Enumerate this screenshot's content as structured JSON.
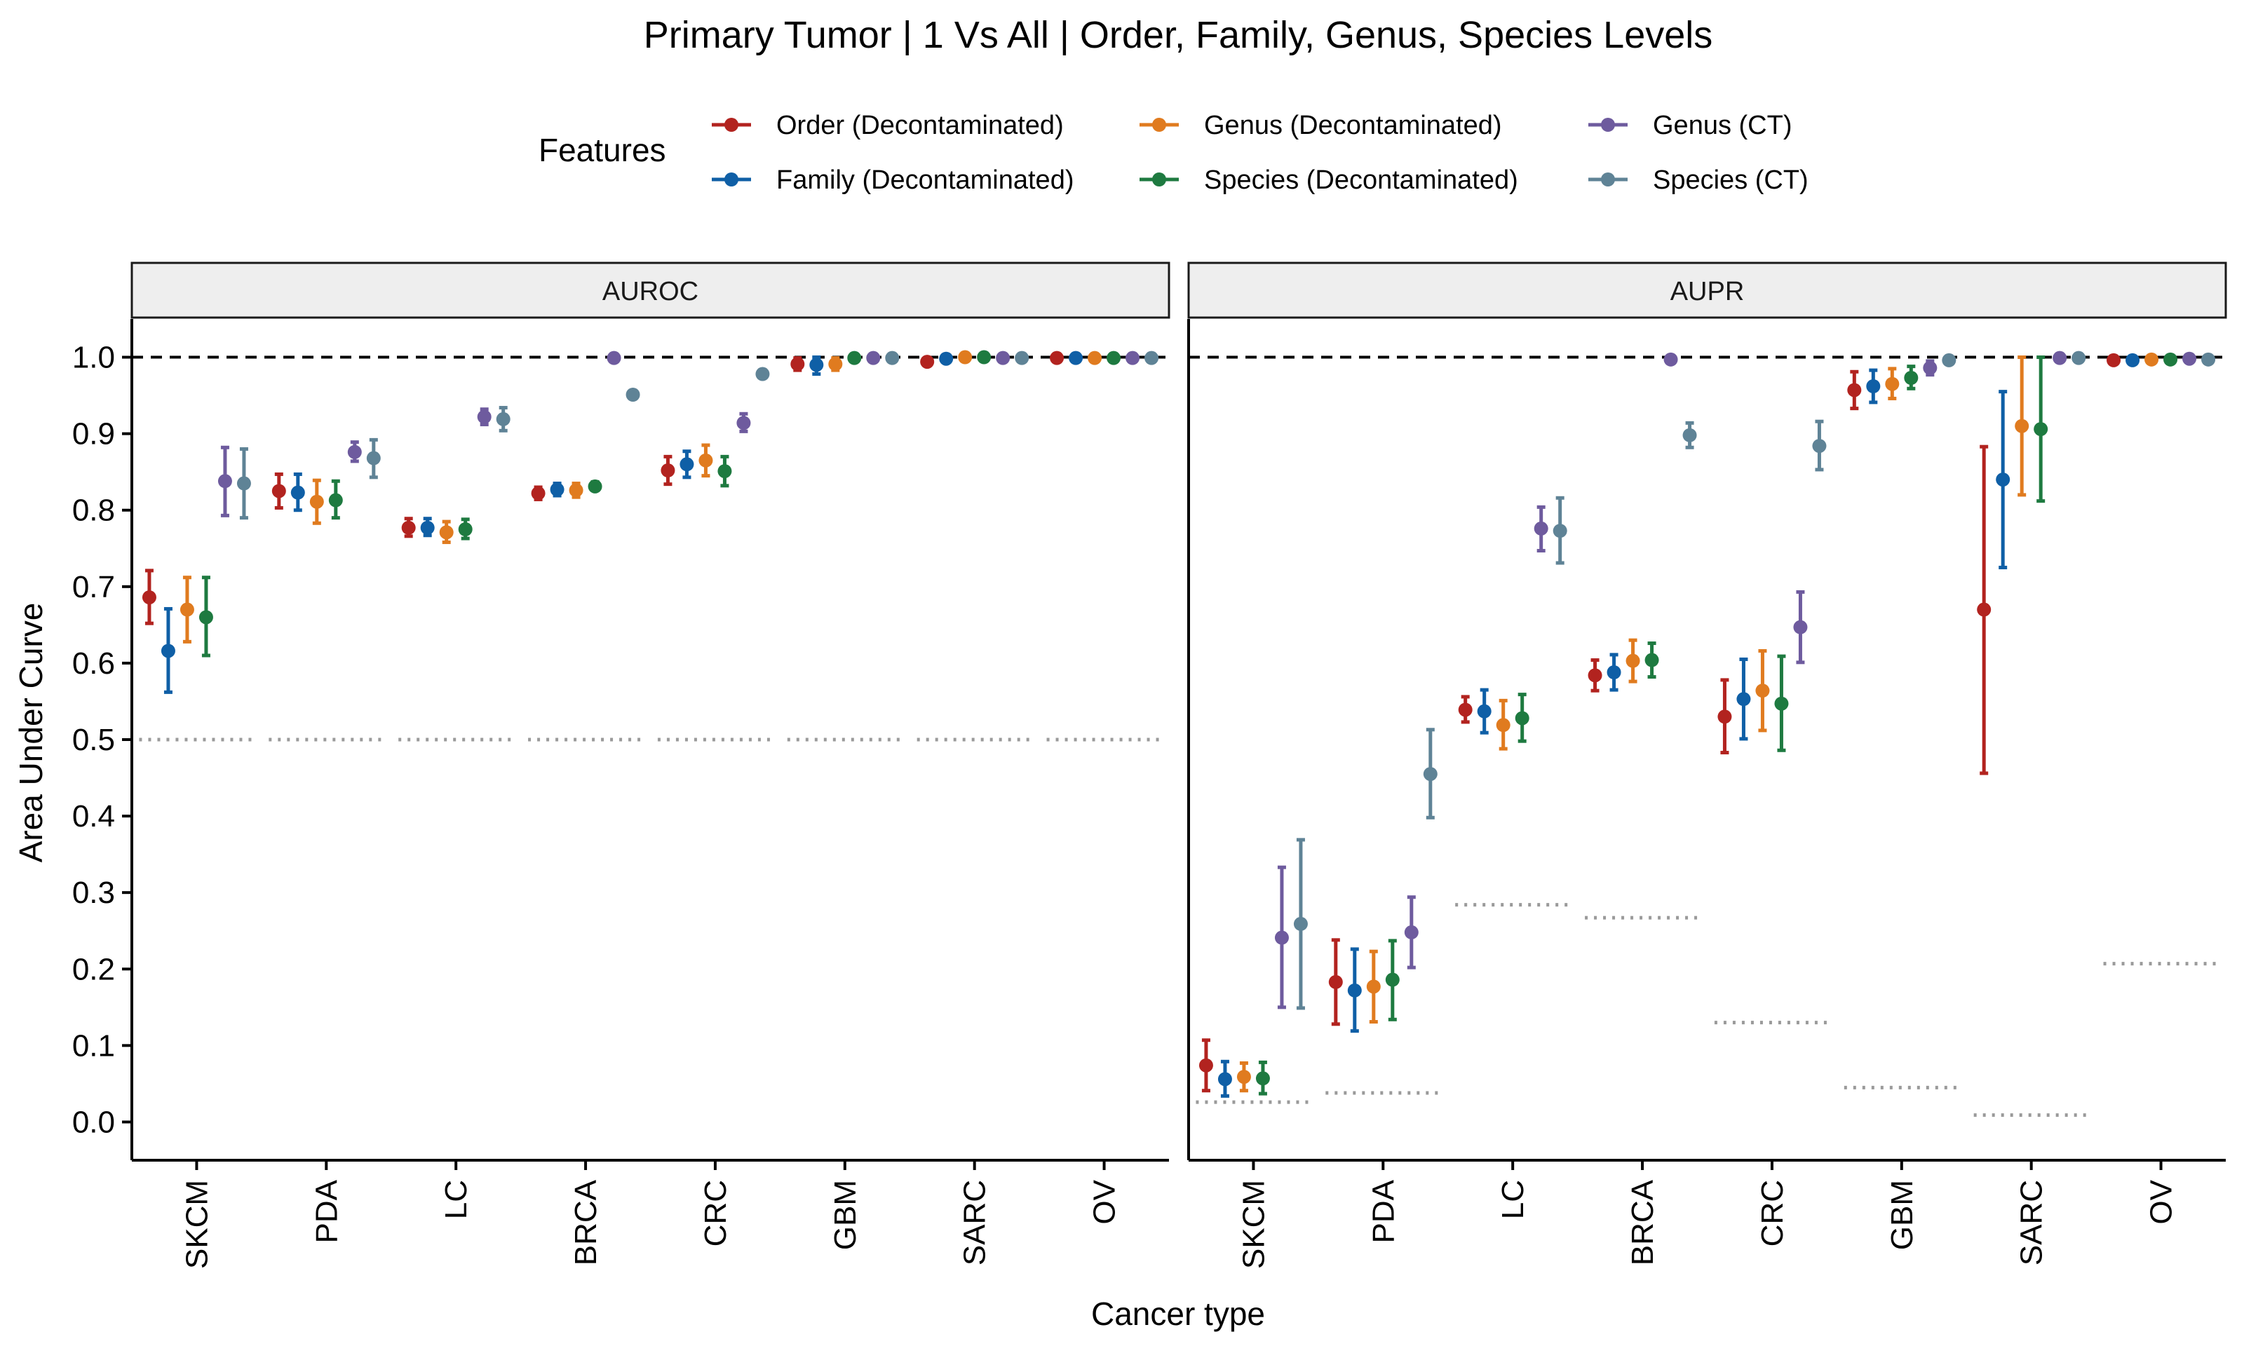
{
  "chart_data": {
    "type": "scatter",
    "title": "Primary Tumor | 1 Vs All | Order, Family, Genus, Species Levels",
    "xlabel": "Cancer type",
    "ylabel": "Area Under Curve",
    "ylim": [
      -0.05,
      1.05
    ],
    "yticks": [
      "0.0",
      "0.1",
      "0.2",
      "0.3",
      "0.4",
      "0.5",
      "0.6",
      "0.7",
      "0.8",
      "0.9",
      "1.0"
    ],
    "categories": [
      "SKCM",
      "PDA",
      "LC",
      "BRCA",
      "CRC",
      "GBM",
      "SARC",
      "OV"
    ],
    "legend": {
      "title": "Features",
      "placement": "top",
      "items": [
        {
          "name": "Order (Decontaminated)",
          "color": "#B2231F"
        },
        {
          "name": "Family (Decontaminated)",
          "color": "#0F5FA6"
        },
        {
          "name": "Genus (Decontaminated)",
          "color": "#E07B1F"
        },
        {
          "name": "Species (Decontaminated)",
          "color": "#1E7A40"
        },
        {
          "name": "Genus (CT)",
          "color": "#6E5B9E"
        },
        {
          "name": "Species (CT)",
          "color": "#5F8396"
        }
      ]
    },
    "reference_line": 1.0,
    "panels": [
      {
        "label": "AUROC",
        "baseline": [
          0.5,
          0.5,
          0.5,
          0.5,
          0.5,
          0.5,
          0.5,
          0.5
        ],
        "series": [
          {
            "name": "Order (Decontaminated)",
            "values": [
              0.686,
              0.825,
              0.777,
              0.822,
              0.852,
              0.991,
              0.994,
              0.999
            ],
            "lower": [
              0.652,
              0.803,
              0.766,
              0.814,
              0.834,
              0.983,
              0.989,
              0.998
            ],
            "upper": [
              0.721,
              0.847,
              0.789,
              0.83,
              0.87,
              0.999,
              0.999,
              1.0
            ]
          },
          {
            "name": "Family (Decontaminated)",
            "values": [
              0.616,
              0.823,
              0.777,
              0.827,
              0.86,
              0.99,
              0.998,
              0.999
            ],
            "lower": [
              0.562,
              0.8,
              0.767,
              0.819,
              0.843,
              0.978,
              0.996,
              0.998
            ],
            "upper": [
              0.671,
              0.847,
              0.789,
              0.835,
              0.877,
              1.0,
              1.0,
              1.0
            ]
          },
          {
            "name": "Genus (Decontaminated)",
            "values": [
              0.67,
              0.811,
              0.771,
              0.826,
              0.865,
              0.991,
              1.0,
              0.999
            ],
            "lower": [
              0.628,
              0.783,
              0.758,
              0.817,
              0.845,
              0.983,
              0.999,
              0.998
            ],
            "upper": [
              0.712,
              0.839,
              0.785,
              0.835,
              0.885,
              0.999,
              1.0,
              1.0
            ]
          },
          {
            "name": "Species (Decontaminated)",
            "values": [
              0.66,
              0.813,
              0.775,
              0.831,
              0.851,
              0.999,
              1.0,
              0.999
            ],
            "lower": [
              0.61,
              0.79,
              0.763,
              0.826,
              0.832,
              0.998,
              0.999,
              0.998
            ],
            "upper": [
              0.712,
              0.838,
              0.788,
              0.837,
              0.87,
              1.0,
              1.0,
              1.0
            ]
          },
          {
            "name": "Genus (CT)",
            "values": [
              0.838,
              0.876,
              0.922,
              0.999,
              0.914,
              0.999,
              0.999,
              0.999
            ],
            "lower": [
              0.793,
              0.864,
              0.912,
              0.999,
              0.903,
              0.998,
              0.998,
              0.998
            ],
            "upper": [
              0.882,
              0.889,
              0.932,
              1.0,
              0.926,
              1.0,
              1.0,
              1.0
            ]
          },
          {
            "name": "Species (CT)",
            "values": [
              0.835,
              0.868,
              0.919,
              0.951,
              0.978,
              0.999,
              0.999,
              0.999
            ],
            "lower": [
              0.79,
              0.843,
              0.904,
              0.948,
              0.974,
              0.998,
              0.998,
              0.998
            ],
            "upper": [
              0.88,
              0.892,
              0.934,
              0.954,
              0.982,
              1.0,
              1.0,
              1.0
            ]
          }
        ]
      },
      {
        "label": "AUPR",
        "baseline": [
          0.026,
          0.038,
          0.284,
          0.267,
          0.13,
          0.045,
          0.009,
          0.207
        ],
        "series": [
          {
            "name": "Order (Decontaminated)",
            "values": [
              0.074,
              0.183,
              0.539,
              0.584,
              0.53,
              0.957,
              0.67,
              0.996
            ],
            "lower": [
              0.041,
              0.128,
              0.523,
              0.564,
              0.483,
              0.933,
              0.456,
              0.992
            ],
            "upper": [
              0.107,
              0.238,
              0.556,
              0.604,
              0.578,
              0.981,
              0.883,
              1.0
            ]
          },
          {
            "name": "Family (Decontaminated)",
            "values": [
              0.056,
              0.172,
              0.537,
              0.588,
              0.553,
              0.962,
              0.84,
              0.996
            ],
            "lower": [
              0.034,
              0.119,
              0.509,
              0.565,
              0.501,
              0.941,
              0.725,
              0.992
            ],
            "upper": [
              0.079,
              0.226,
              0.565,
              0.611,
              0.605,
              0.983,
              0.955,
              1.0
            ]
          },
          {
            "name": "Genus (Decontaminated)",
            "values": [
              0.059,
              0.177,
              0.519,
              0.603,
              0.564,
              0.965,
              0.91,
              0.997
            ],
            "lower": [
              0.041,
              0.131,
              0.488,
              0.576,
              0.512,
              0.946,
              0.82,
              0.995
            ],
            "upper": [
              0.077,
              0.223,
              0.551,
              0.63,
              0.616,
              0.985,
              1.0,
              1.0
            ]
          },
          {
            "name": "Species (Decontaminated)",
            "values": [
              0.057,
              0.186,
              0.528,
              0.604,
              0.547,
              0.973,
              0.906,
              0.997
            ],
            "lower": [
              0.037,
              0.134,
              0.498,
              0.582,
              0.486,
              0.959,
              0.812,
              0.995
            ],
            "upper": [
              0.078,
              0.237,
              0.559,
              0.626,
              0.609,
              0.988,
              1.0,
              1.0
            ]
          },
          {
            "name": "Genus (CT)",
            "values": [
              0.241,
              0.248,
              0.776,
              0.997,
              0.647,
              0.986,
              0.999,
              0.998
            ],
            "lower": [
              0.15,
              0.202,
              0.747,
              0.995,
              0.601,
              0.977,
              0.998,
              0.997
            ],
            "upper": [
              0.333,
              0.294,
              0.804,
              0.999,
              0.693,
              0.995,
              1.0,
              1.0
            ]
          },
          {
            "name": "Species (CT)",
            "values": [
              0.259,
              0.455,
              0.773,
              0.898,
              0.884,
              0.996,
              0.999,
              0.997
            ],
            "lower": [
              0.149,
              0.398,
              0.731,
              0.882,
              0.853,
              0.994,
              0.998,
              0.996
            ],
            "upper": [
              0.369,
              0.513,
              0.816,
              0.914,
              0.916,
              0.998,
              1.0,
              0.999
            ]
          }
        ]
      }
    ]
  }
}
